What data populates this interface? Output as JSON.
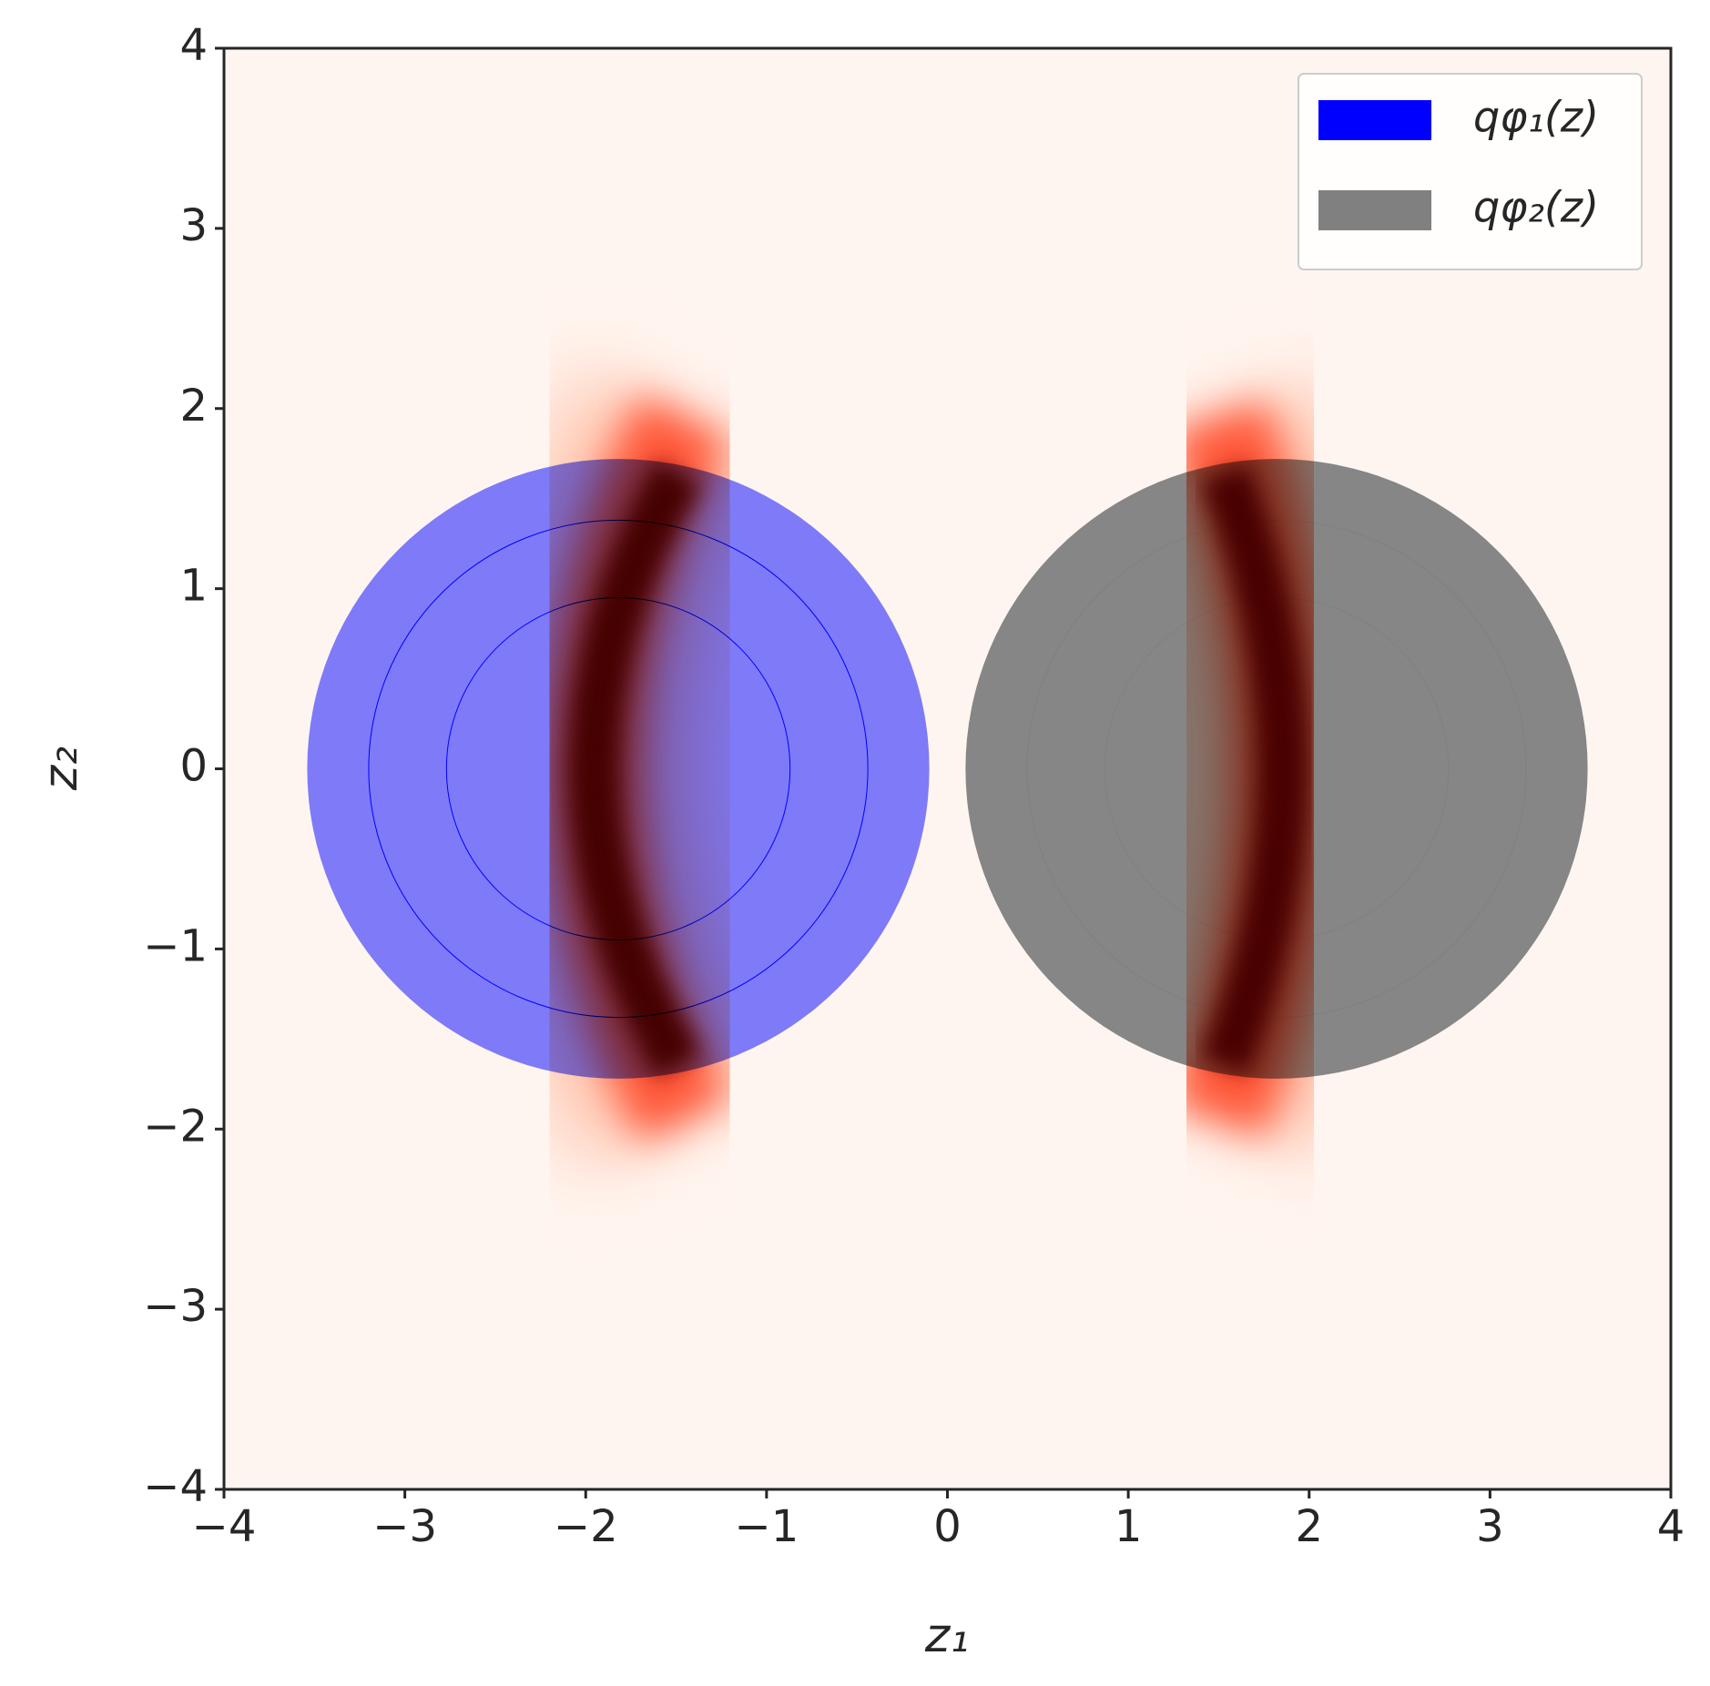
{
  "chart_data": {
    "type": "gaussian-contours",
    "x_label": "z₁",
    "y_label": "z₂",
    "xlim": [
      -4,
      4
    ],
    "ylim": [
      -4,
      4
    ],
    "xticks": [
      {
        "value": -4,
        "label": "−4"
      },
      {
        "value": -3,
        "label": "−3"
      },
      {
        "value": -2,
        "label": "−2"
      },
      {
        "value": -1,
        "label": "−1"
      },
      0,
      1,
      2,
      3,
      4
    ],
    "yticks": [
      {
        "value": -4,
        "label": "−4"
      },
      {
        "value": -3,
        "label": "−3"
      },
      {
        "value": -2,
        "label": "−2"
      },
      {
        "value": -1,
        "label": "−1"
      },
      0,
      1,
      2,
      3,
      4
    ],
    "legend": "upper right",
    "series": [
      {
        "name": "qφ₁(z)",
        "color": "#0000ff",
        "center": [
          -1.82,
          0
        ],
        "radii": [
          1.72,
          1.38,
          0.95
        ]
      },
      {
        "name": "qφ₂(z)",
        "color": "#808080",
        "center": [
          1.82,
          0
        ],
        "radii": [
          1.72,
          1.38,
          0.95
        ]
      }
    ]
  }
}
